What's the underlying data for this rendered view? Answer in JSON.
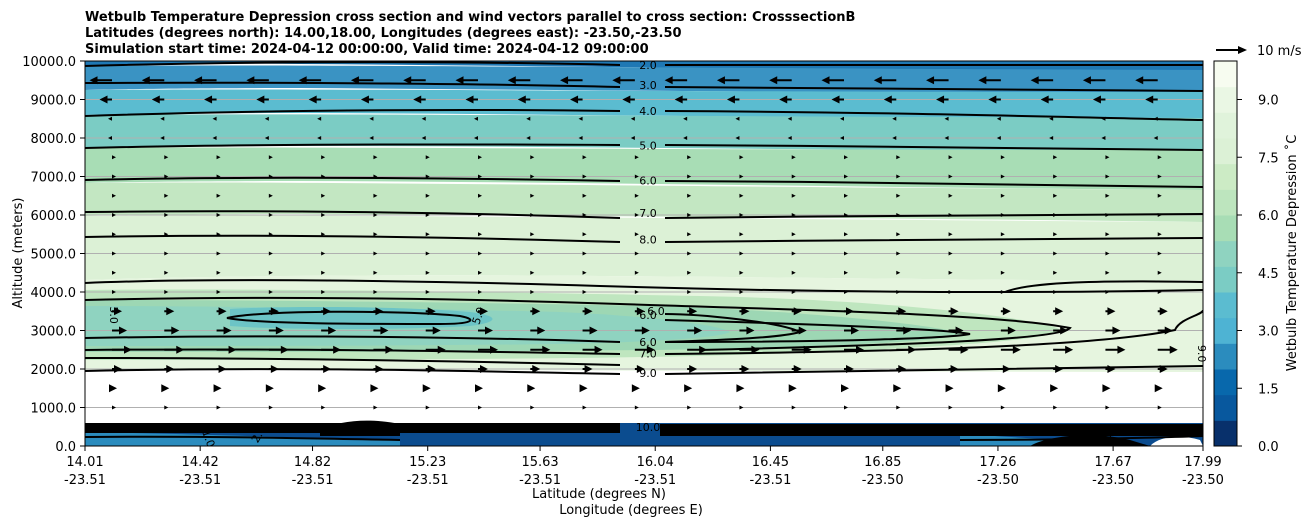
{
  "chart_data": {
    "type": "contourf",
    "title_lines": [
      "Wetbulb Temperature Depression cross section and wind vectors parallel to cross section: CrosssectionB",
      "Latitudes (degrees north): 14.00,18.00, Longitudes (degrees east): -23.50,-23.50",
      "Simulation start time: 2024-04-12 00:00:00, Valid time: 2024-04-12 09:00:00"
    ],
    "ylabel": "Altitude (meters)",
    "xlabel_lat": "Latitude (degrees N)",
    "xlabel_lon": "Longitude (degrees E)",
    "ylim": [
      0,
      10000
    ],
    "yticks": [
      "0.0",
      "1000.0",
      "2000.0",
      "3000.0",
      "4000.0",
      "5000.0",
      "6000.0",
      "7000.0",
      "8000.0",
      "9000.0",
      "10000.0"
    ],
    "xticks": [
      {
        "lat": "14.01",
        "lon": "-23.51"
      },
      {
        "lat": "14.42",
        "lon": "-23.51"
      },
      {
        "lat": "14.82",
        "lon": "-23.51"
      },
      {
        "lat": "15.23",
        "lon": "-23.51"
      },
      {
        "lat": "15.63",
        "lon": "-23.51"
      },
      {
        "lat": "16.04",
        "lon": "-23.51"
      },
      {
        "lat": "16.45",
        "lon": "-23.51"
      },
      {
        "lat": "16.85",
        "lon": "-23.50"
      },
      {
        "lat": "17.26",
        "lon": "-23.50"
      },
      {
        "lat": "17.67",
        "lon": "-23.50"
      },
      {
        "lat": "17.99",
        "lon": "-23.50"
      }
    ],
    "xlim": [
      14.01,
      17.99
    ],
    "colorbar": {
      "label": "Wetbulb Temperature Depression ˚C",
      "ticks": [
        "0.0",
        "1.5",
        "3.0",
        "4.5",
        "6.0",
        "7.5",
        "9.0"
      ],
      "range": [
        0,
        10
      ],
      "cmap": "GnBu_r",
      "colors": [
        "#08306b",
        "#08589e",
        "#0868ac",
        "#2b8cbe",
        "#4eb3d3",
        "#5bbcd0",
        "#7bccc4",
        "#8fd3c0",
        "#a8ddb5",
        "#bde5be",
        "#ccebc5",
        "#dcf1d6",
        "#e0f3db",
        "#eaf7e4",
        "#f7fcf0"
      ]
    },
    "quiver_key": {
      "label": "10 m/s",
      "speed_ms": 10
    },
    "contour_lines": [
      {
        "level": "2.0",
        "altitude_m": 9900
      },
      {
        "level": "3.0",
        "altitude_m": 9380
      },
      {
        "level": "4.0",
        "altitude_m": 8700
      },
      {
        "level": "5.0",
        "altitude_m": 7800
      },
      {
        "level": "6.0",
        "altitude_m": 6900
      },
      {
        "level": "7.0",
        "altitude_m": 6050
      },
      {
        "level": "8.0",
        "altitude_m": 5370
      },
      {
        "level": "6.0",
        "altitude_m": 3400
      },
      {
        "level": "6.0",
        "altitude_m": 2700
      },
      {
        "level": "7.0",
        "altitude_m": 2400
      },
      {
        "level": "9.0",
        "altitude_m": 1900
      },
      {
        "level": "10.0",
        "altitude_m": 500
      }
    ],
    "extra_contour_labels": [
      "5.0",
      "5.0",
      "6.0",
      "9.0",
      "1.0",
      "2.0",
      "0.0"
    ],
    "wind_rows": [
      {
        "altitude_m": 9500,
        "u": -9
      },
      {
        "altitude_m": 9000,
        "u": -5
      },
      {
        "altitude_m": 8500,
        "u": -1
      },
      {
        "altitude_m": 8000,
        "u": -0.5
      },
      {
        "altitude_m": 7500,
        "u": 0.5
      },
      {
        "altitude_m": 7000,
        "u": 1
      },
      {
        "altitude_m": 6500,
        "u": 1
      },
      {
        "altitude_m": 6000,
        "u": 1
      },
      {
        "altitude_m": 5500,
        "u": 1
      },
      {
        "altitude_m": 5000,
        "u": 1
      },
      {
        "altitude_m": 4500,
        "u": 1
      },
      {
        "altitude_m": 4000,
        "u": 1.5
      },
      {
        "altitude_m": 3500,
        "u": 4
      },
      {
        "altitude_m": 3000,
        "u": 6
      },
      {
        "altitude_m": 2500,
        "u": 8
      },
      {
        "altitude_m": 2000,
        "u": 4
      },
      {
        "altitude_m": 1500,
        "u": 2
      },
      {
        "altitude_m": 1000,
        "u": 0.5
      }
    ],
    "grid": "horizontal"
  }
}
